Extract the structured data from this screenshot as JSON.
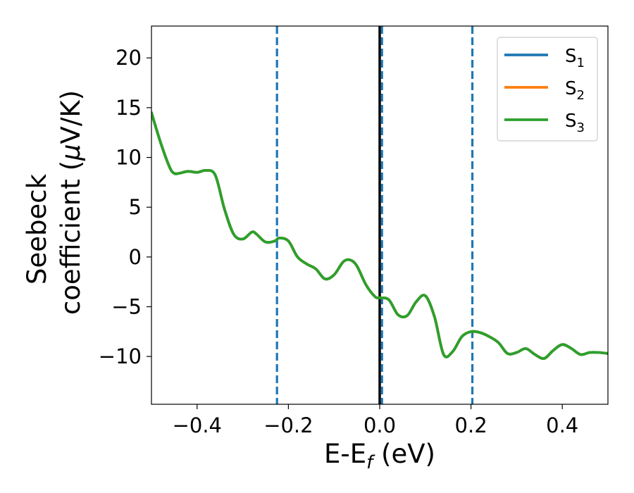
{
  "chart_data": {
    "type": "line",
    "xlabel": {
      "base": "E-E",
      "sub": "f",
      "unit": " (eV)"
    },
    "ylabel": {
      "line1": "Seebeck",
      "line2_prefix": "coefficient  (",
      "mu": "μ",
      "line2_suffix": "V/K)"
    },
    "xlim": [
      -0.5,
      0.5
    ],
    "ylim": [
      -14.8,
      23.2
    ],
    "xticks": [
      -0.4,
      -0.2,
      0.0,
      0.2,
      0.4
    ],
    "xtick_labels": [
      "−0.4",
      "−0.2",
      "0.0",
      "0.2",
      "0.4"
    ],
    "yticks": [
      -10,
      -5,
      0,
      5,
      10,
      15,
      20
    ],
    "ytick_labels": [
      "−10",
      "−5",
      "0",
      "5",
      "10",
      "15",
      "20"
    ],
    "grid": false,
    "legend_position": "top-right",
    "series": [
      {
        "name": "S",
        "sub": "1",
        "color": "#1f77b4"
      },
      {
        "name": "S",
        "sub": "2",
        "color": "#ff7f0e"
      },
      {
        "name": "S",
        "sub": "3",
        "color": "#2ca02c"
      }
    ],
    "x": [
      -0.5,
      -0.48,
      -0.46,
      -0.45,
      -0.44,
      -0.42,
      -0.4,
      -0.38,
      -0.36,
      -0.34,
      -0.32,
      -0.3,
      -0.28,
      -0.27,
      -0.25,
      -0.23,
      -0.22,
      -0.2,
      -0.18,
      -0.16,
      -0.14,
      -0.12,
      -0.1,
      -0.08,
      -0.065,
      -0.05,
      -0.03,
      -0.01,
      0.0,
      0.02,
      0.04,
      0.06,
      0.08,
      0.1,
      0.12,
      0.14,
      0.16,
      0.18,
      0.2,
      0.22,
      0.24,
      0.26,
      0.28,
      0.3,
      0.32,
      0.34,
      0.36,
      0.38,
      0.4,
      0.42,
      0.44,
      0.46,
      0.48,
      0.5
    ],
    "y": [
      14.5,
      11.5,
      9.0,
      8.4,
      8.4,
      8.6,
      8.5,
      8.7,
      8.2,
      4.8,
      2.3,
      1.8,
      2.5,
      2.3,
      1.5,
      1.6,
      1.9,
      1.6,
      0.0,
      -0.7,
      -1.2,
      -2.2,
      -1.8,
      -0.5,
      -0.3,
      -0.9,
      -2.8,
      -4.0,
      -4.1,
      -4.3,
      -5.8,
      -5.9,
      -4.5,
      -3.9,
      -6.0,
      -9.8,
      -9.5,
      -8.0,
      -7.5,
      -7.6,
      -8.0,
      -8.6,
      -9.7,
      -9.6,
      -9.2,
      -9.8,
      -10.2,
      -9.4,
      -8.8,
      -9.2,
      -9.8,
      -9.6,
      -9.6,
      -9.7
    ],
    "vlines": [
      {
        "x": 0.0,
        "color": "#000000",
        "style": "solid"
      },
      {
        "x": -0.225,
        "color": "#1f77b4",
        "style": "dashed"
      },
      {
        "x": 0.005,
        "color": "#1f77b4",
        "style": "dashed"
      },
      {
        "x": 0.203,
        "color": "#1f77b4",
        "style": "dashed"
      }
    ]
  }
}
